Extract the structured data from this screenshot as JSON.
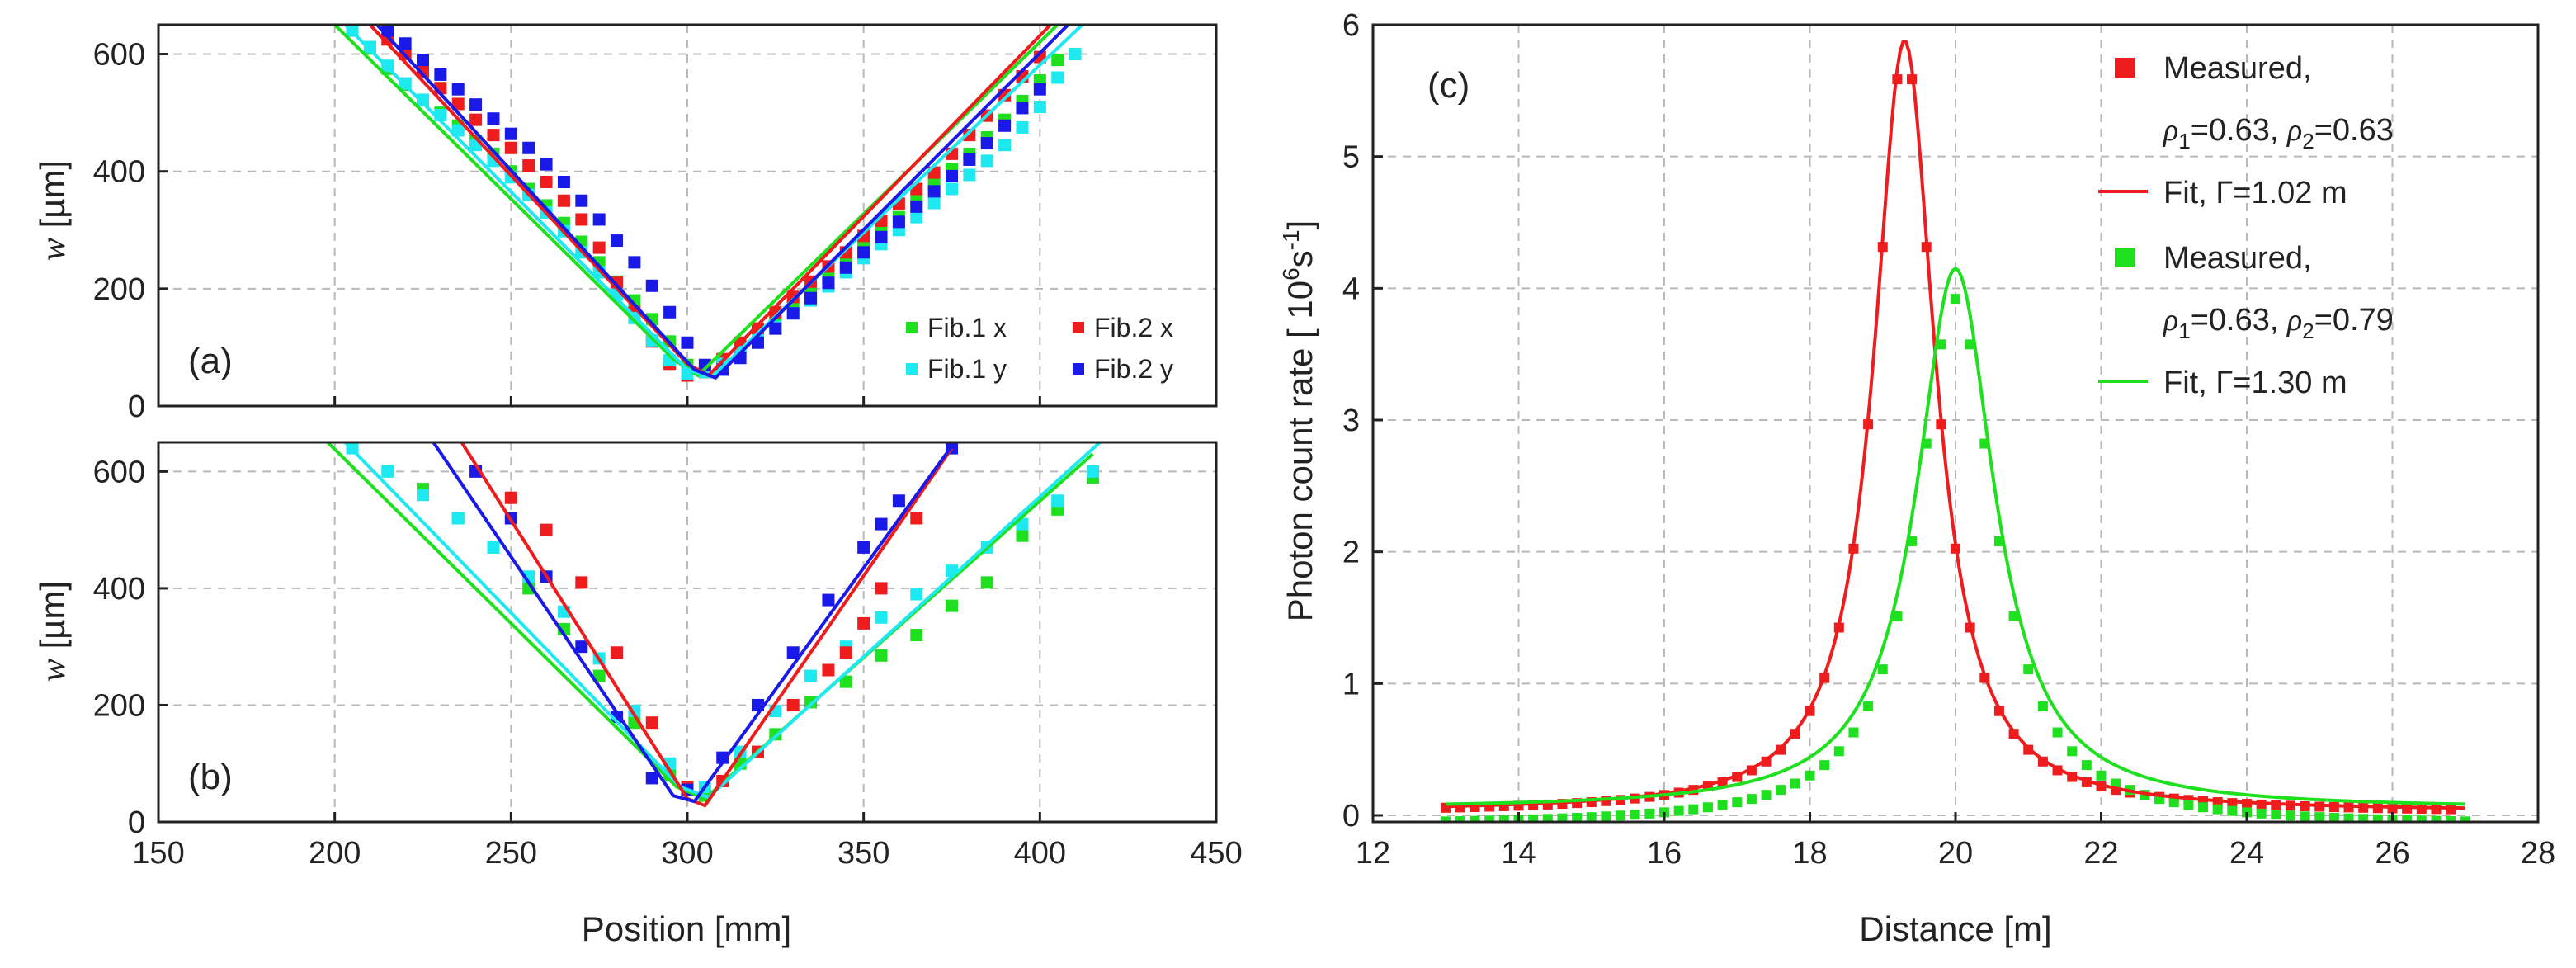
{
  "colors": {
    "red": "#ee1c1c",
    "green": "#1fe01f",
    "cyan": "#1ee8f0",
    "blue": "#1a1ae8",
    "black": "#111111"
  },
  "chart_data": [
    {
      "id": "a",
      "type": "scatter",
      "panel_label": "(a)",
      "ylabel_sym": "w",
      "ylabel_unit": "[µm]",
      "xlim": [
        150,
        450
      ],
      "ylim": [
        0,
        650
      ],
      "xticks": [
        150,
        200,
        250,
        300,
        350,
        400,
        450
      ],
      "yticks": [
        0,
        200,
        400,
        600
      ],
      "ytick_labels": [
        "0",
        "200",
        "400",
        "600"
      ],
      "grid": true,
      "legend": {
        "placement": "bottom-right",
        "items": [
          {
            "label": "Fib.1 x",
            "color": "green"
          },
          {
            "label": "Fib.2 x",
            "color": "red"
          },
          {
            "label": "Fib.1 y",
            "color": "cyan"
          },
          {
            "label": "Fib.2 y",
            "color": "blue"
          }
        ]
      },
      "series": [
        {
          "name": "Fib.1 x",
          "color": "green",
          "kind": "points",
          "x": [
            205,
            210,
            215,
            220,
            225,
            230,
            235,
            240,
            245,
            250,
            255,
            260,
            265,
            270,
            275,
            280,
            285,
            290,
            295,
            300,
            305,
            310,
            315,
            320,
            325,
            330,
            335,
            340,
            345,
            350,
            355,
            360,
            365,
            370,
            375,
            380,
            385,
            390,
            395,
            400,
            405
          ],
          "y": [
            640,
            610,
            575,
            548,
            522,
            500,
            478,
            452,
            430,
            400,
            370,
            342,
            312,
            280,
            245,
            212,
            180,
            148,
            110,
            70,
            58,
            78,
            100,
            124,
            148,
            172,
            196,
            220,
            246,
            272,
            298,
            322,
            350,
            378,
            404,
            430,
            458,
            488,
            520,
            555,
            590
          ]
        },
        {
          "name": "Fib.2 x",
          "color": "red",
          "kind": "points",
          "x": [
            215,
            220,
            225,
            230,
            235,
            240,
            245,
            250,
            255,
            260,
            265,
            270,
            275,
            280,
            285,
            290,
            295,
            300,
            305,
            310,
            315,
            320,
            325,
            330,
            335,
            340,
            345,
            350,
            355,
            360,
            365,
            370,
            375,
            380,
            385,
            390,
            395,
            400
          ],
          "y": [
            625,
            600,
            570,
            542,
            515,
            488,
            462,
            440,
            410,
            382,
            350,
            318,
            270,
            210,
            160,
            110,
            72,
            52,
            58,
            80,
            108,
            132,
            160,
            186,
            212,
            238,
            262,
            290,
            316,
            345,
            370,
            398,
            430,
            462,
            495,
            530,
            562,
            595
          ]
        },
        {
          "name": "Fib.1 y",
          "color": "cyan",
          "kind": "points",
          "x": [
            205,
            210,
            215,
            220,
            225,
            230,
            235,
            240,
            245,
            250,
            255,
            260,
            265,
            270,
            275,
            280,
            285,
            290,
            295,
            300,
            305,
            310,
            315,
            320,
            325,
            330,
            335,
            340,
            345,
            350,
            355,
            360,
            365,
            370,
            375,
            380,
            385,
            390,
            395,
            400,
            405,
            410
          ],
          "y": [
            640,
            612,
            580,
            550,
            522,
            496,
            470,
            445,
            418,
            390,
            360,
            330,
            298,
            262,
            228,
            190,
            150,
            112,
            78,
            55,
            58,
            72,
            92,
            112,
            135,
            158,
            180,
            204,
            228,
            252,
            276,
            300,
            322,
            346,
            370,
            394,
            418,
            445,
            475,
            510,
            560,
            600
          ]
        },
        {
          "name": "Fib.2 y",
          "color": "blue",
          "kind": "points",
          "x": [
            215,
            220,
            225,
            230,
            235,
            240,
            245,
            250,
            255,
            260,
            265,
            270,
            275,
            280,
            285,
            290,
            295,
            300,
            305,
            310,
            315,
            320,
            325,
            330,
            335,
            340,
            345,
            350,
            355,
            360,
            365,
            370,
            375,
            380,
            385,
            390,
            395,
            400
          ],
          "y": [
            640,
            618,
            590,
            565,
            540,
            514,
            490,
            464,
            440,
            412,
            382,
            350,
            318,
            282,
            245,
            205,
            160,
            108,
            70,
            62,
            82,
            108,
            132,
            158,
            184,
            210,
            236,
            262,
            288,
            314,
            340,
            366,
            392,
            420,
            448,
            478,
            508,
            540
          ]
        },
        {
          "name": "Fib.1 x fit",
          "color": "green",
          "kind": "line",
          "x": [
            200,
            296,
            303,
            405
          ],
          "y": [
            650,
            80,
            52,
            650
          ]
        },
        {
          "name": "Fib.1 y fit",
          "color": "cyan",
          "kind": "line",
          "x": [
            203,
            300,
            307,
            412
          ],
          "y": [
            650,
            62,
            50,
            650
          ]
        },
        {
          "name": "Fib.2 x fit",
          "color": "red",
          "kind": "line",
          "x": [
            210,
            300,
            306,
            403
          ],
          "y": [
            650,
            72,
            52,
            650
          ]
        },
        {
          "name": "Fib.2 y fit",
          "color": "blue",
          "kind": "line",
          "x": [
            212,
            302,
            308,
            408
          ],
          "y": [
            650,
            62,
            48,
            650
          ]
        }
      ]
    },
    {
      "id": "b",
      "type": "scatter",
      "panel_label": "(b)",
      "ylabel_sym": "w",
      "ylabel_unit": "[µm]",
      "xlabel": "Position [mm]",
      "xlim": [
        150,
        450
      ],
      "ylim": [
        0,
        650
      ],
      "xticks": [
        150,
        200,
        250,
        300,
        350,
        400,
        450
      ],
      "xtick_labels": [
        "150",
        "200",
        "250",
        "300",
        "350",
        "400",
        "450"
      ],
      "yticks": [
        0,
        200,
        400,
        600
      ],
      "ytick_labels": [
        "0",
        "200",
        "400",
        "600"
      ],
      "grid": true,
      "series": [
        {
          "name": "Fib.1 x",
          "color": "green",
          "kind": "points",
          "x": [
            225,
            235,
            245,
            255,
            265,
            275,
            285,
            295,
            305,
            315,
            325,
            335,
            345,
            355,
            365,
            375,
            385,
            395,
            405,
            415
          ],
          "y": [
            570,
            520,
            470,
            400,
            330,
            250,
            170,
            80,
            45,
            100,
            150,
            205,
            240,
            285,
            320,
            370,
            410,
            490,
            535,
            590
          ]
        },
        {
          "name": "Fib.1 y",
          "color": "cyan",
          "kind": "points",
          "x": [
            205,
            215,
            225,
            235,
            245,
            255,
            265,
            275,
            285,
            295,
            305,
            315,
            325,
            335,
            345,
            355,
            365,
            375,
            385,
            395,
            405,
            415
          ],
          "y": [
            640,
            600,
            560,
            520,
            470,
            420,
            360,
            280,
            190,
            100,
            60,
            120,
            190,
            250,
            300,
            350,
            390,
            430,
            470,
            510,
            550,
            600
          ]
        },
        {
          "name": "Fib.2 x",
          "color": "red",
          "kind": "points",
          "x": [
            250,
            260,
            270,
            280,
            290,
            300,
            310,
            320,
            330,
            340,
            345,
            350,
            355,
            365,
            375
          ],
          "y": [
            555,
            500,
            410,
            290,
            170,
            60,
            70,
            120,
            200,
            260,
            290,
            340,
            400,
            520,
            640
          ]
        },
        {
          "name": "Fib.2 y",
          "color": "blue",
          "kind": "points",
          "x": [
            240,
            250,
            260,
            270,
            280,
            290,
            300,
            310,
            320,
            330,
            340,
            350,
            355,
            360,
            375
          ],
          "y": [
            600,
            520,
            420,
            300,
            180,
            75,
            55,
            110,
            200,
            290,
            380,
            470,
            510,
            550,
            640
          ]
        },
        {
          "name": "Fib.1 x fit",
          "color": "green",
          "kind": "line",
          "x": [
            198,
            297,
            305,
            415
          ],
          "y": [
            650,
            60,
            40,
            630
          ]
        },
        {
          "name": "Fib.1 y fit",
          "color": "cyan",
          "kind": "line",
          "x": [
            203,
            298,
            306,
            417
          ],
          "y": [
            650,
            60,
            42,
            650
          ]
        },
        {
          "name": "Fib.2 x fit",
          "color": "red",
          "kind": "line",
          "x": [
            236,
            300,
            305,
            375
          ],
          "y": [
            650,
            40,
            28,
            640
          ]
        },
        {
          "name": "Fib.2 y fit",
          "color": "blue",
          "kind": "line",
          "x": [
            228,
            296,
            302,
            377
          ],
          "y": [
            650,
            45,
            35,
            660
          ]
        }
      ]
    },
    {
      "id": "c",
      "type": "scatter",
      "panel_label": "(c)",
      "xlabel": "Distance [m]",
      "ylabel_main": "Photon count rate",
      "ylabel_unit": "[ 10",
      "ylabel_exp": "6",
      "ylabel_s": "s",
      "ylabel_sexp": "-1",
      "ylabel_close": "]",
      "xlim": [
        12,
        28
      ],
      "ylim": [
        -0.05,
        6
      ],
      "xticks": [
        12,
        14,
        16,
        18,
        20,
        22,
        24,
        26,
        28
      ],
      "xtick_labels": [
        "12",
        "14",
        "16",
        "18",
        "20",
        "22",
        "24",
        "26",
        "28"
      ],
      "yticks": [
        0,
        1,
        2,
        3,
        4,
        5,
        6
      ],
      "ytick_labels": [
        "0",
        "1",
        "2",
        "3",
        "4",
        "5",
        "6"
      ],
      "grid": true,
      "legend": {
        "placement": "top-right",
        "items": [
          {
            "kind": "marker",
            "color": "red",
            "text": "Measured,"
          },
          {
            "kind": "rho",
            "rho": "ρ",
            "sub1": "1",
            "val1": "=0.63, ",
            "sub2": "2",
            "val2": "=0.63"
          },
          {
            "kind": "line",
            "color": "red",
            "text": "Fit, Γ=1.02 m"
          },
          {
            "kind": "marker",
            "color": "green",
            "text": "Measured,"
          },
          {
            "kind": "rho",
            "rho": "ρ",
            "sub1": "1",
            "val1": "=0.63, ",
            "sub2": "2",
            "val2": "=0.79"
          },
          {
            "kind": "line",
            "color": "green",
            "text": "Fit, Γ=1.30 m"
          }
        ]
      },
      "series": [
        {
          "name": "Measured, ρ1=0.63, ρ2=0.63",
          "color": "red",
          "kind": "lorentz_points",
          "x0": 19.3,
          "gamma": 1.02,
          "peak": 5.78,
          "offset": 0.02,
          "xmin": 13.0,
          "xmax": 26.8,
          "step": 0.2
        },
        {
          "name": "Fit, Γ=1.02 m",
          "color": "red",
          "kind": "lorentz_line",
          "x0": 19.3,
          "gamma": 1.02,
          "peak": 5.85,
          "offset": 0.03,
          "xmin": 13.0,
          "xmax": 27.0
        },
        {
          "name": "Measured, ρ1=0.63, ρ2=0.79",
          "color": "green",
          "kind": "lorentz_points",
          "x0": 20.0,
          "gamma": 1.3,
          "peak": 4.0,
          "offset": -0.08,
          "xmin": 13.0,
          "xmax": 27.0,
          "step": 0.2
        },
        {
          "name": "Fit, Γ=1.30 m",
          "color": "green",
          "kind": "lorentz_line",
          "x0": 20.0,
          "gamma": 1.3,
          "peak": 4.1,
          "offset": 0.05,
          "xmin": 13.0,
          "xmax": 27.0
        }
      ]
    }
  ]
}
